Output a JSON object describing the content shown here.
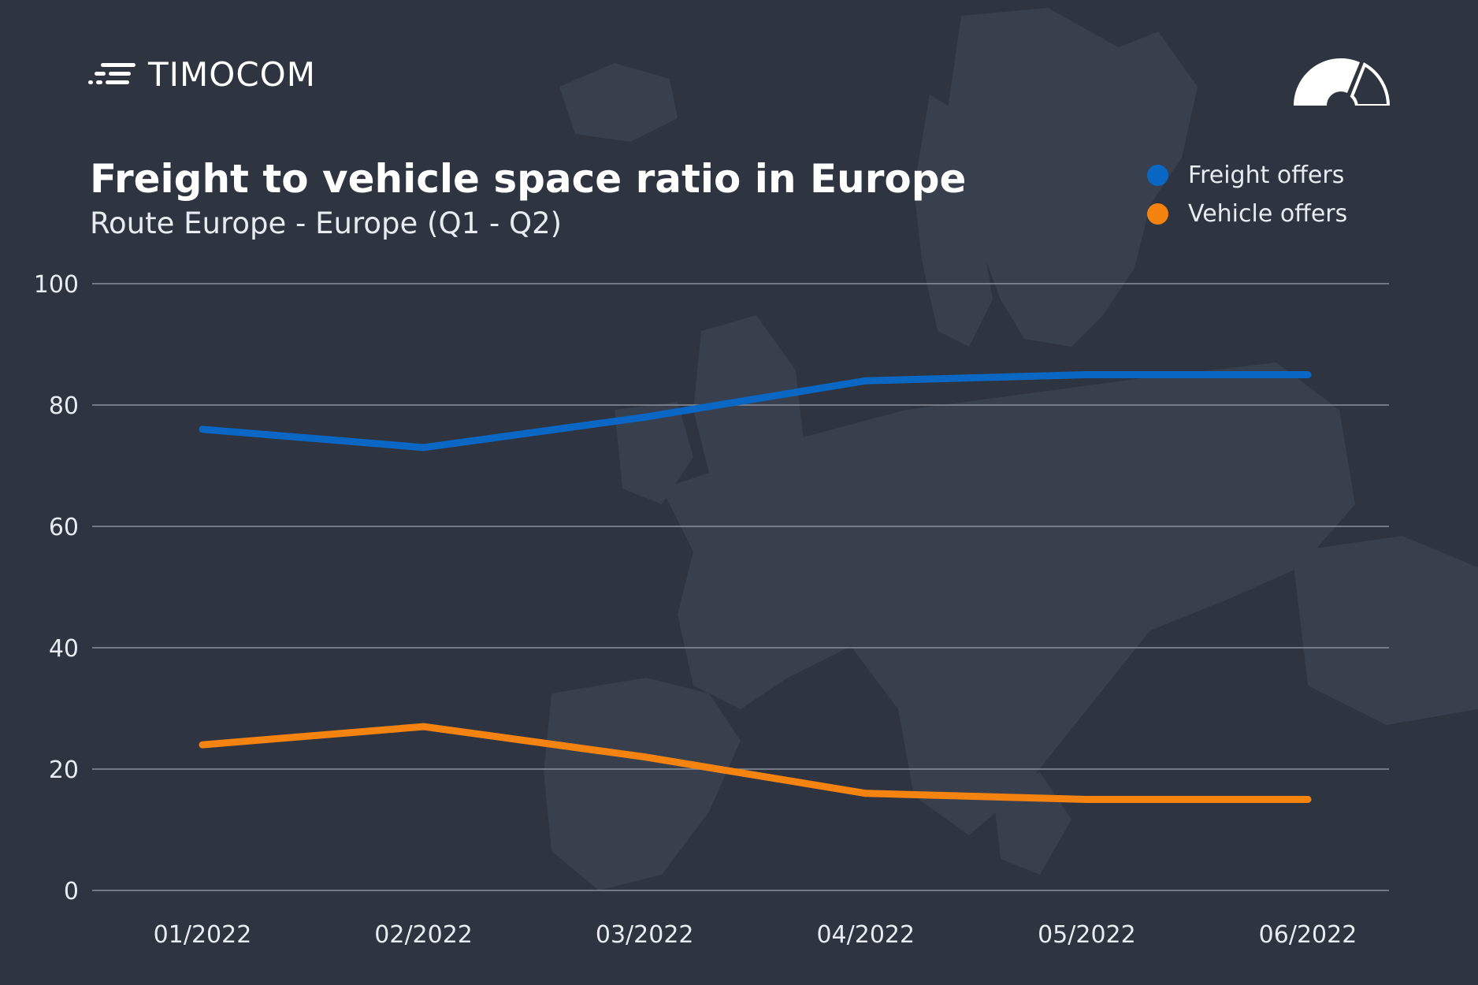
{
  "brand": {
    "name": "TIMOCOM",
    "logo_icon": "timocom-lines-icon",
    "gauge_icon": "speedometer-icon"
  },
  "colors": {
    "background": "#2e3440",
    "map": "#3a4250",
    "grid": "#8a919c",
    "freight": "#0a67c4",
    "vehicle": "#f5830f",
    "text": "#ffffff"
  },
  "chart_data": {
    "type": "line",
    "title": "Freight to vehicle space ratio in Europe",
    "subtitle": "Route Europe - Europe (Q1 - Q2)",
    "categories": [
      "01/2022",
      "02/2022",
      "03/2022",
      "04/2022",
      "05/2022",
      "06/2022"
    ],
    "series": [
      {
        "name": "Freight offers",
        "color": "#0a67c4",
        "values": [
          76,
          73,
          78,
          84,
          85,
          85
        ]
      },
      {
        "name": "Vehicle offers",
        "color": "#f5830f",
        "values": [
          24,
          27,
          22,
          16,
          15,
          15
        ]
      }
    ],
    "ylim": [
      0,
      100
    ],
    "yticks": [
      0,
      20,
      40,
      60,
      80,
      100
    ],
    "grid": true,
    "legend": "top-right"
  }
}
